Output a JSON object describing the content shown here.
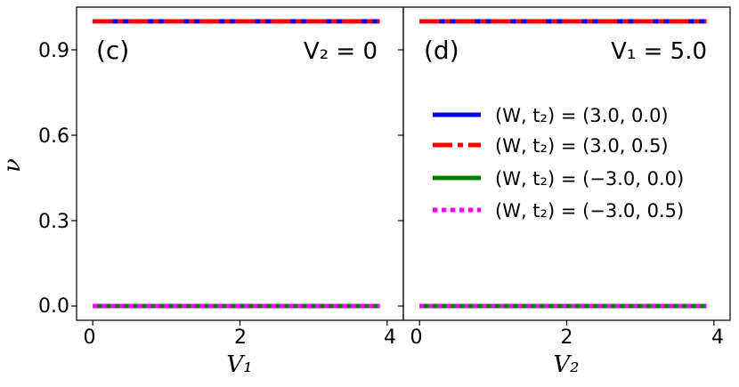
{
  "figure": {
    "ylabel": "ν",
    "yticks": [
      "0.0",
      "0.3",
      "0.6",
      "0.9"
    ]
  },
  "panels": [
    {
      "label": "(c)",
      "annotation": "V₂ = 0",
      "xlabel": "V₁",
      "xticks": [
        "0",
        "2",
        "4"
      ]
    },
    {
      "label": "(d)",
      "annotation": "V₁ = 5.0",
      "xlabel": "V₂",
      "xticks": [
        "0",
        "2",
        "4"
      ]
    }
  ],
  "legend": [
    "(W, t₂) = (3.0, 0.0)",
    "(W, t₂) = (3.0, 0.5)",
    "(W, t₂) = (−3.0, 0.0)",
    "(W, t₂) = (−3.0, 0.5)"
  ],
  "chart_data": [
    {
      "type": "line",
      "panel": "(c)",
      "xlabel": "V₁",
      "ylabel": "ν",
      "xlim": [
        -0.22,
        4.22
      ],
      "ylim": [
        -0.05,
        1.05
      ],
      "grid": false,
      "series": [
        {
          "name": "(W, t₂) = (3.0, 0.0)",
          "color": "#0000ff",
          "style": "solid",
          "x": [
            0,
            3.9
          ],
          "y": [
            1.0,
            1.0
          ]
        },
        {
          "name": "(W, t₂) = (3.0, 0.5)",
          "color": "#ff0000",
          "style": "dashdot",
          "x": [
            0,
            3.9
          ],
          "y": [
            1.0,
            1.0
          ]
        },
        {
          "name": "(W, t₂) = (−3.0, 0.0)",
          "color": "#008000",
          "style": "solid",
          "x": [
            0,
            3.9
          ],
          "y": [
            0.0,
            0.0
          ]
        },
        {
          "name": "(W, t₂) = (−3.0, 0.5)",
          "color": "#ff00ff",
          "style": "dotted",
          "x": [
            0,
            3.9
          ],
          "y": [
            0.0,
            0.0
          ]
        }
      ]
    },
    {
      "type": "line",
      "panel": "(d)",
      "xlabel": "V₂",
      "ylabel": "",
      "xlim": [
        -0.22,
        4.22
      ],
      "ylim": [
        -0.05,
        1.05
      ],
      "grid": false,
      "legend_position": "right",
      "series": [
        {
          "name": "(W, t₂) = (3.0, 0.0)",
          "color": "#0000ff",
          "style": "solid",
          "x": [
            0,
            3.9
          ],
          "y": [
            1.0,
            1.0
          ]
        },
        {
          "name": "(W, t₂) = (3.0, 0.5)",
          "color": "#ff0000",
          "style": "dashdot",
          "x": [
            0,
            3.9
          ],
          "y": [
            1.0,
            1.0
          ]
        },
        {
          "name": "(W, t₂) = (−3.0, 0.0)",
          "color": "#008000",
          "style": "solid",
          "x": [
            0,
            3.9
          ],
          "y": [
            0.0,
            0.0
          ]
        },
        {
          "name": "(W, t₂) = (−3.0, 0.5)",
          "color": "#ff00ff",
          "style": "dotted",
          "x": [
            0,
            3.9
          ],
          "y": [
            0.0,
            0.0
          ]
        }
      ]
    }
  ]
}
